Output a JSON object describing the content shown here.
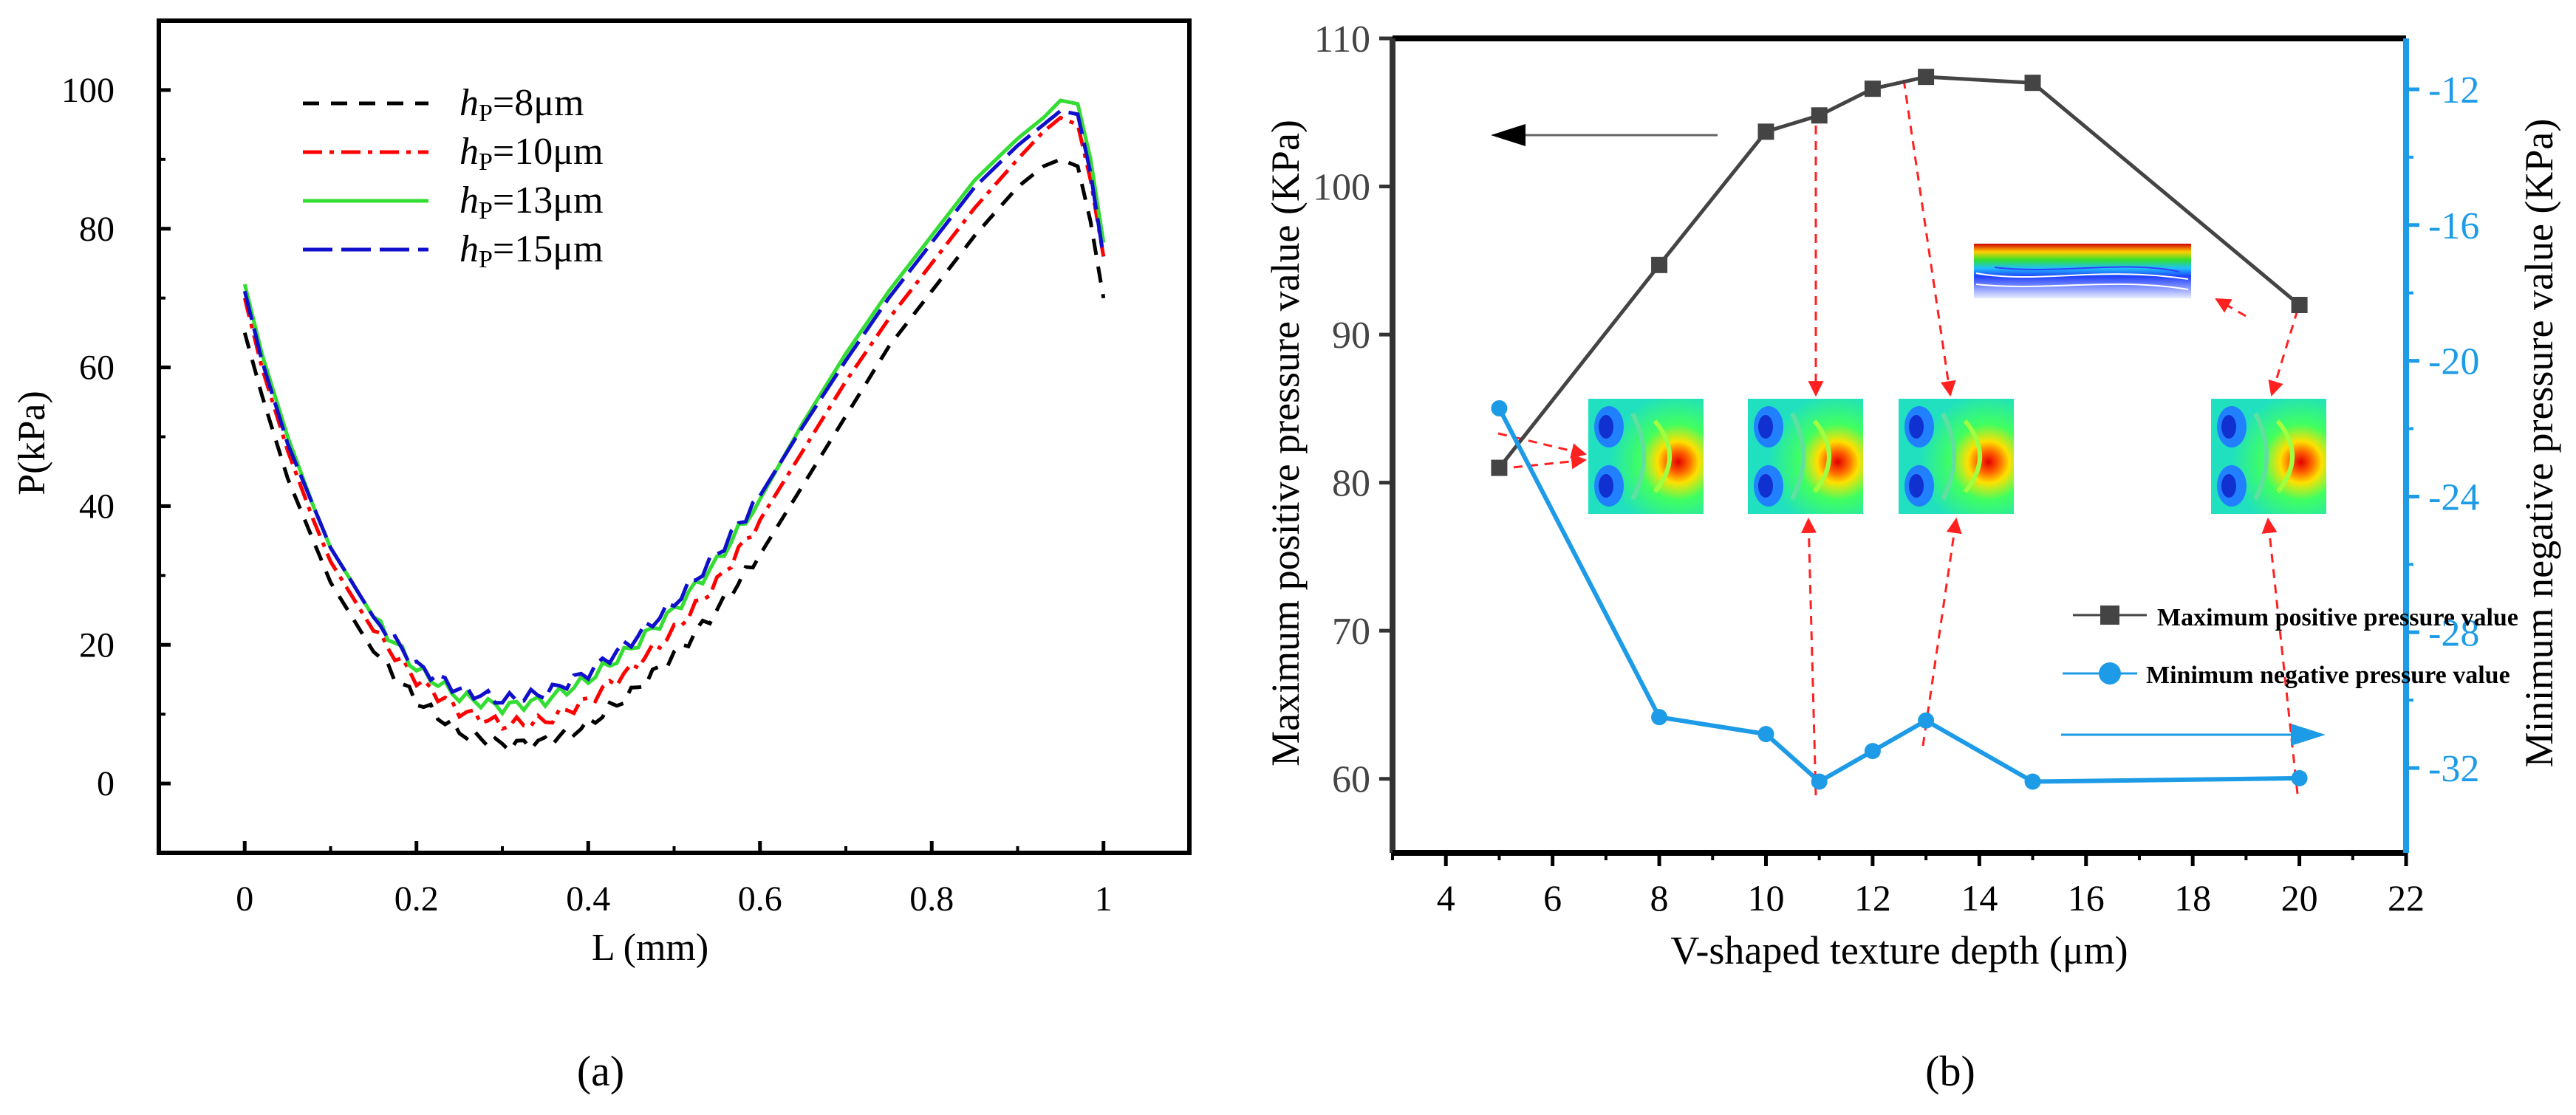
{
  "chart_data": [
    {
      "type": "line",
      "panel_label": "(a)",
      "xlabel": "L (mm)",
      "ylabel": "P(kPa)",
      "xlim": [
        -0.1,
        1.1
      ],
      "ylim": [
        -10,
        110
      ],
      "xticks": [
        0,
        0.2,
        0.4,
        0.6,
        0.8,
        1
      ],
      "xtick_labels": [
        "0",
        "0.2",
        "0.4",
        "0.6",
        "0.8",
        "1"
      ],
      "yticks": [
        0,
        20,
        40,
        60,
        80,
        100
      ],
      "ytick_labels": [
        "0",
        "20",
        "40",
        "60",
        "80",
        "100"
      ],
      "legend_position": "top-left",
      "series": [
        {
          "name": "hP=8μm",
          "legend_prefix": "h",
          "legend_sub": "P",
          "legend_suffix": "=8μm",
          "color": "#000000",
          "style": "dash",
          "x": [
            0,
            0.02,
            0.05,
            0.08,
            0.1,
            0.15,
            0.2,
            0.25,
            0.3,
            0.35,
            0.4,
            0.45,
            0.5,
            0.55,
            0.6,
            0.65,
            0.7,
            0.75,
            0.8,
            0.85,
            0.9,
            0.93,
            0.95,
            0.97,
            0.985,
            1.0
          ],
          "y": [
            65,
            56,
            44,
            35,
            29,
            19,
            12,
            7.5,
            5.5,
            6,
            8.5,
            13,
            18.5,
            25,
            33,
            43,
            53,
            63,
            71,
            79,
            86,
            89,
            90,
            89,
            81,
            70
          ]
        },
        {
          "name": "hP=10μm",
          "legend_prefix": "h",
          "legend_sub": "P",
          "legend_suffix": "=10μm",
          "color": "#ff0000",
          "style": "dashdot",
          "x": [
            0,
            0.02,
            0.05,
            0.08,
            0.1,
            0.15,
            0.2,
            0.25,
            0.3,
            0.35,
            0.4,
            0.45,
            0.5,
            0.55,
            0.6,
            0.65,
            0.7,
            0.75,
            0.8,
            0.85,
            0.9,
            0.93,
            0.95,
            0.97,
            0.985,
            1.0
          ],
          "y": [
            70,
            60,
            48,
            38,
            32,
            22,
            15,
            10.5,
            8.5,
            9,
            12,
            16.5,
            22,
            29,
            38,
            48,
            58,
            67,
            75,
            83,
            90,
            94,
            96,
            95,
            87,
            76
          ]
        },
        {
          "name": "hP=13μm",
          "legend_prefix": "h",
          "legend_sub": "P",
          "legend_suffix": "=13μm",
          "color": "#33dd33",
          "style": "solid",
          "x": [
            0,
            0.02,
            0.05,
            0.08,
            0.1,
            0.15,
            0.2,
            0.25,
            0.3,
            0.35,
            0.4,
            0.45,
            0.5,
            0.55,
            0.6,
            0.65,
            0.7,
            0.75,
            0.8,
            0.85,
            0.9,
            0.93,
            0.95,
            0.97,
            0.985,
            1.0
          ],
          "y": [
            72,
            62,
            50,
            40,
            34,
            24,
            16.5,
            12.5,
            11,
            12,
            15,
            19.5,
            25,
            32,
            41,
            52,
            62,
            71,
            79,
            87,
            93,
            96,
            98.5,
            98,
            90,
            78
          ]
        },
        {
          "name": "hP=15μm",
          "legend_prefix": "h",
          "legend_sub": "P",
          "legend_suffix": "=15μm",
          "color": "#1010cc",
          "style": "longdash",
          "x": [
            0,
            0.02,
            0.05,
            0.08,
            0.1,
            0.15,
            0.2,
            0.25,
            0.3,
            0.35,
            0.4,
            0.45,
            0.5,
            0.55,
            0.6,
            0.65,
            0.7,
            0.75,
            0.8,
            0.85,
            0.9,
            0.93,
            0.95,
            0.97,
            0.985,
            1.0
          ],
          "y": [
            71,
            61,
            49,
            40,
            34,
            24,
            17,
            13.5,
            12,
            13,
            16,
            20.5,
            26,
            33,
            41.5,
            51.5,
            61,
            70,
            78,
            86,
            92,
            95,
            97,
            96.5,
            88,
            76
          ]
        }
      ]
    },
    {
      "type": "line",
      "panel_label": "(b)",
      "xlabel": "V-shaped texture depth (μm)",
      "ylabel": "Maximum positive pressure value (KPa)",
      "y2label": "Minimum negative pressure value (KPa)",
      "xlim": [
        3,
        22
      ],
      "ylim": [
        55,
        110
      ],
      "y2lim": [
        -34.5,
        -10.5
      ],
      "xticks": [
        4,
        6,
        8,
        10,
        12,
        14,
        16,
        18,
        20,
        22
      ],
      "xtick_labels": [
        "4",
        "6",
        "8",
        "10",
        "12",
        "14",
        "16",
        "18",
        "20",
        "22"
      ],
      "yticks": [
        60,
        70,
        80,
        90,
        100,
        110
      ],
      "ytick_labels": [
        "60",
        "70",
        "80",
        "90",
        "100",
        "110"
      ],
      "y2ticks": [
        -32,
        -28,
        -24,
        -20,
        -16,
        -12
      ],
      "y2tick_labels": [
        "-32",
        "-28",
        "-24",
        "-20",
        "-16",
        "-12"
      ],
      "legend_position": "lower-right",
      "series": [
        {
          "name": "Maximum positive pressure value",
          "axis": "left",
          "color": "#444444",
          "marker": "square",
          "x": [
            5,
            8,
            10,
            11,
            12,
            13,
            15,
            20
          ],
          "y": [
            81,
            94.7,
            103.7,
            104.8,
            106.6,
            107.4,
            107,
            92
          ]
        },
        {
          "name": "Minimum negative pressure value",
          "axis": "right",
          "color": "#1e9be6",
          "marker": "circle",
          "x": [
            5,
            8,
            10,
            11,
            12,
            13,
            15,
            20
          ],
          "y": [
            -21.4,
            -30.5,
            -31,
            -32.4,
            -31.5,
            -30.6,
            -32.4,
            -32.3
          ]
        }
      ],
      "insets": [
        {
          "label": "contour-depth-5",
          "x": 5
        },
        {
          "label": "contour-depth-11",
          "x": 11
        },
        {
          "label": "contour-depth-13",
          "x": 13
        },
        {
          "label": "contour-depth-20",
          "x": 20
        },
        {
          "label": "streamline-depth-20",
          "x": 20
        }
      ]
    }
  ]
}
